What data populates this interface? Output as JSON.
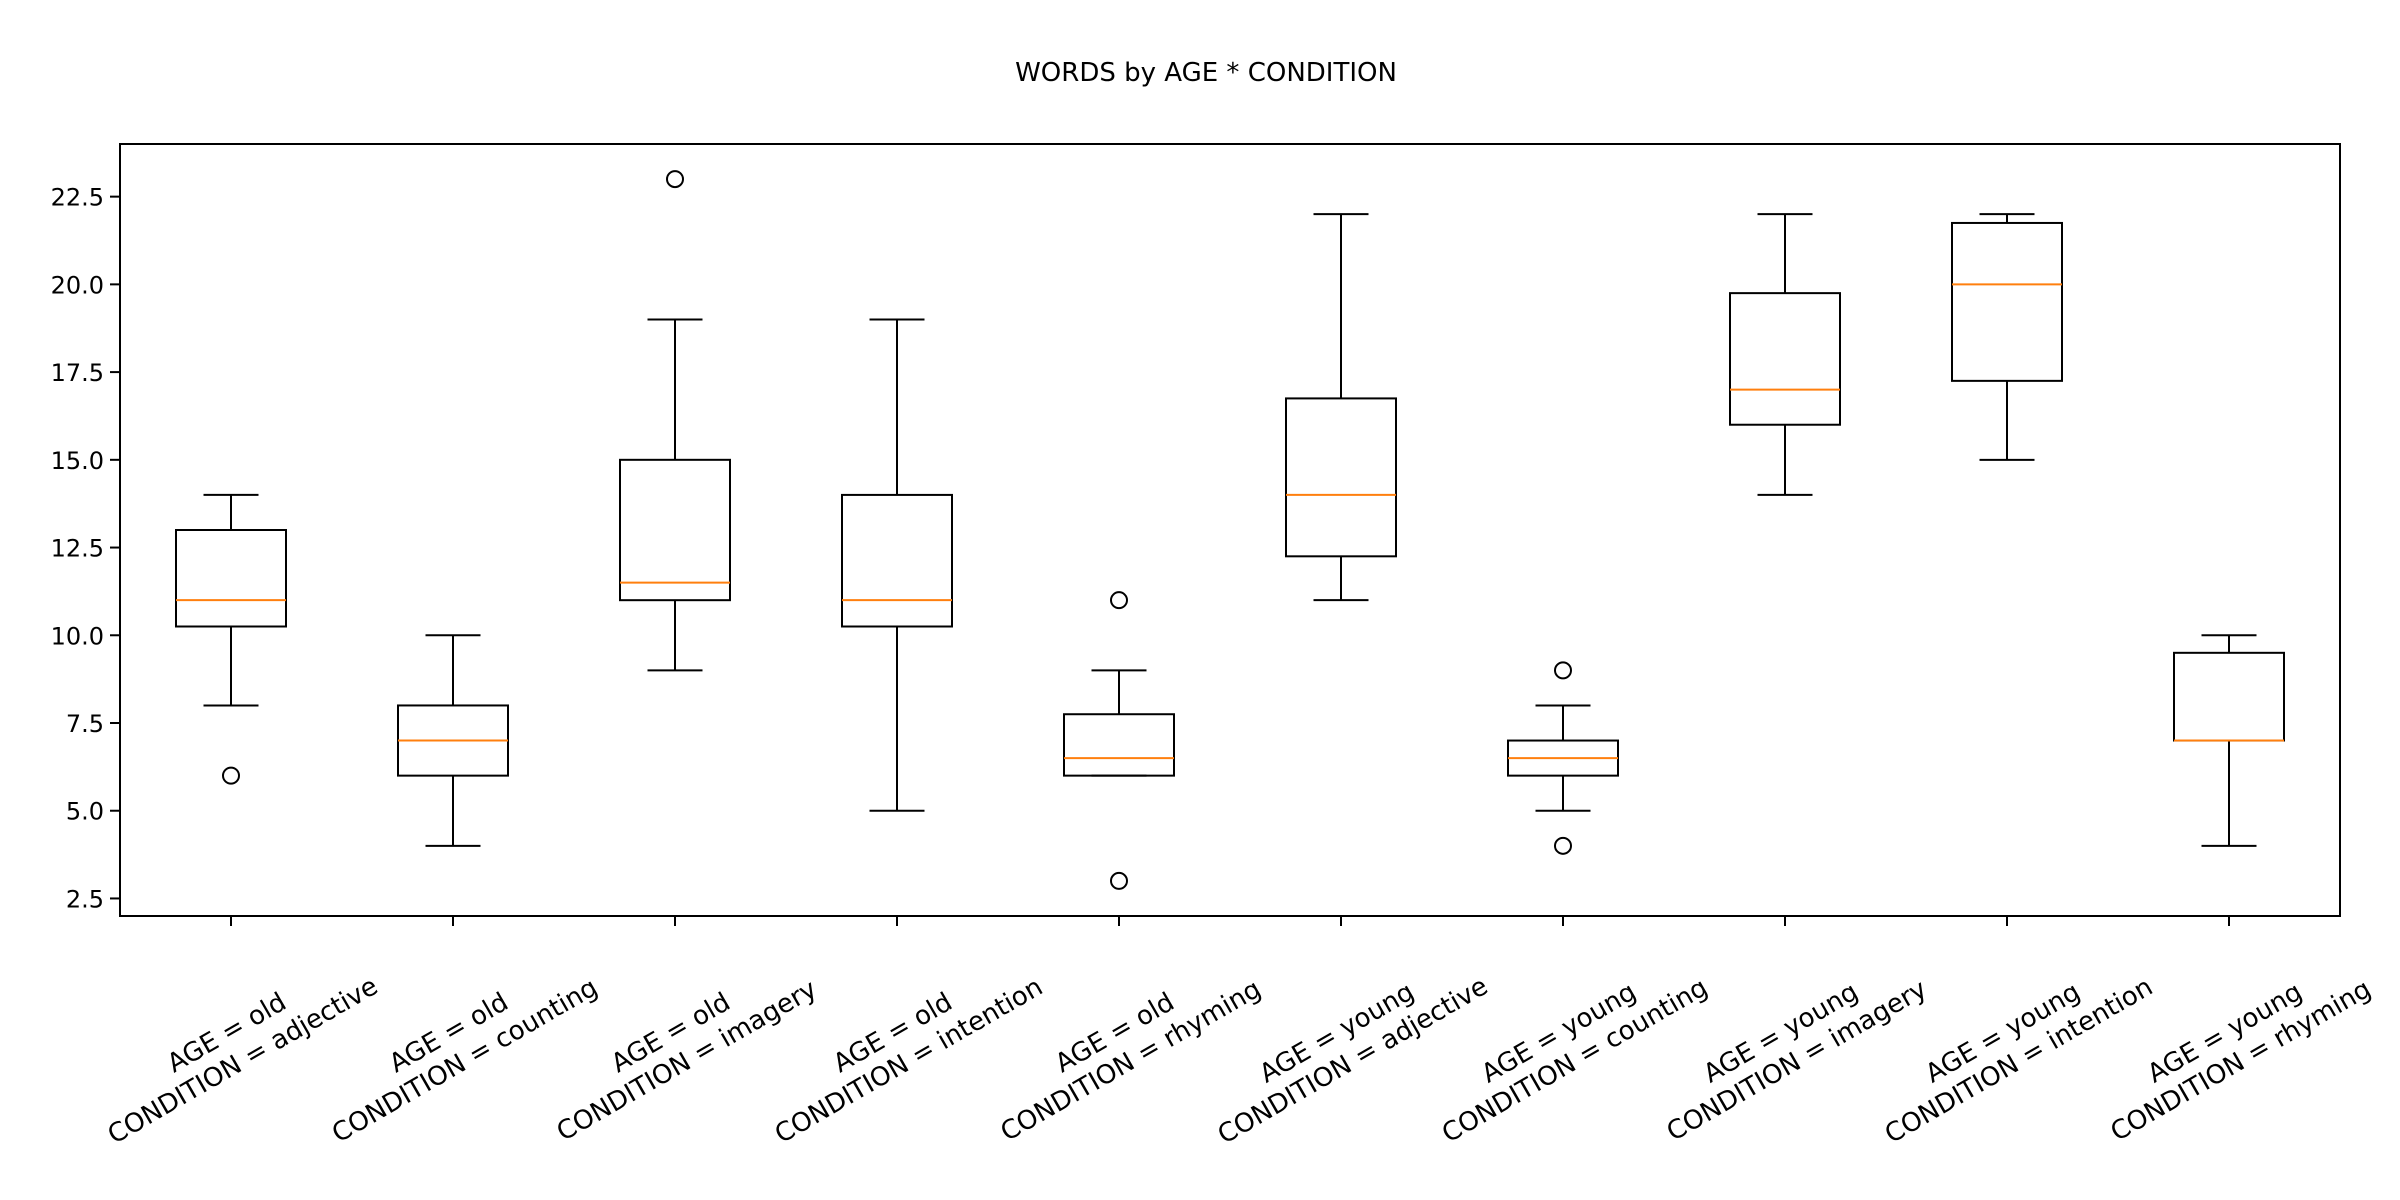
{
  "chart_data": {
    "type": "box",
    "title": "WORDS by AGE * CONDITION",
    "xlabel": "",
    "ylabel": "",
    "ylim": [
      2.0,
      24.0
    ],
    "yticks": [
      2.5,
      5.0,
      7.5,
      10.0,
      12.5,
      15.0,
      17.5,
      20.0,
      22.5
    ],
    "ytick_labels": [
      "2.5",
      "5.0",
      "7.5",
      "10.0",
      "12.5",
      "15.0",
      "17.5",
      "20.0",
      "22.5"
    ],
    "grid": false,
    "colors": {
      "box": "#000000",
      "median": "#ff7f0e",
      "outlier": "#000000"
    },
    "categories": [
      {
        "line1": "AGE = old",
        "line2": "CONDITION = adjective"
      },
      {
        "line1": "AGE = old",
        "line2": "CONDITION = counting"
      },
      {
        "line1": "AGE = old",
        "line2": "CONDITION = imagery"
      },
      {
        "line1": "AGE = old",
        "line2": "CONDITION = intention"
      },
      {
        "line1": "AGE = old",
        "line2": "CONDITION = rhyming"
      },
      {
        "line1": "AGE = young",
        "line2": "CONDITION = adjective"
      },
      {
        "line1": "AGE = young",
        "line2": "CONDITION = counting"
      },
      {
        "line1": "AGE = young",
        "line2": "CONDITION = imagery"
      },
      {
        "line1": "AGE = young",
        "line2": "CONDITION = intention"
      },
      {
        "line1": "AGE = young",
        "line2": "CONDITION = rhyming"
      }
    ],
    "boxes": [
      {
        "whisker_low": 8,
        "q1": 10.25,
        "median": 11,
        "q3": 13,
        "whisker_high": 14,
        "outliers": [
          6
        ]
      },
      {
        "whisker_low": 4,
        "q1": 6,
        "median": 7,
        "q3": 8,
        "whisker_high": 10,
        "outliers": []
      },
      {
        "whisker_low": 9,
        "q1": 11,
        "median": 11.5,
        "q3": 15,
        "whisker_high": 19,
        "outliers": [
          23
        ]
      },
      {
        "whisker_low": 5,
        "q1": 10.25,
        "median": 11,
        "q3": 14,
        "whisker_high": 19,
        "outliers": []
      },
      {
        "whisker_low": 6,
        "q1": 6,
        "median": 6.5,
        "q3": 7.75,
        "whisker_high": 9,
        "outliers": [
          11,
          3
        ]
      },
      {
        "whisker_low": 11,
        "q1": 12.25,
        "median": 14,
        "q3": 16.75,
        "whisker_high": 22,
        "outliers": []
      },
      {
        "whisker_low": 5,
        "q1": 6,
        "median": 6.5,
        "q3": 7,
        "whisker_high": 8,
        "outliers": [
          9,
          4
        ]
      },
      {
        "whisker_low": 14,
        "q1": 16,
        "median": 17,
        "q3": 19.75,
        "whisker_high": 22,
        "outliers": []
      },
      {
        "whisker_low": 15,
        "q1": 17.25,
        "median": 20,
        "q3": 21.75,
        "whisker_high": 22,
        "outliers": []
      },
      {
        "whisker_low": 4,
        "q1": 7,
        "median": 7,
        "q3": 9.5,
        "whisker_high": 10,
        "outliers": []
      }
    ]
  }
}
